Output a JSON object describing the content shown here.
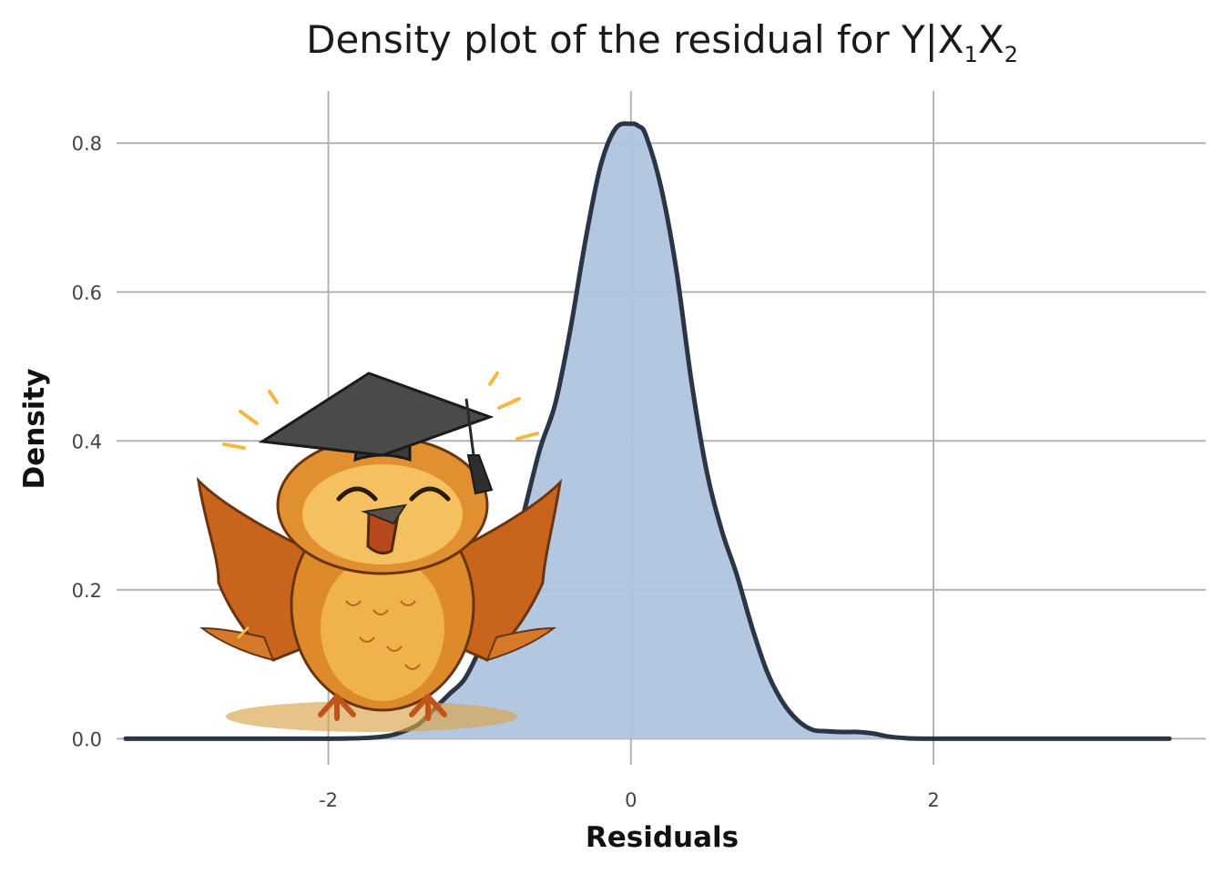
{
  "chart_data": {
    "type": "area",
    "title": {
      "main": "Density plot of the residual for  Y|X",
      "sub1": "1",
      "mid": "X",
      "sub2": "2"
    },
    "xlabel": "Residuals",
    "ylabel": "Density",
    "xlim": [
      -3.4,
      3.8
    ],
    "ylim": [
      -0.035,
      0.87
    ],
    "x_ticks": [
      {
        "value": -2,
        "label": "-2"
      },
      {
        "value": 0,
        "label": "0"
      },
      {
        "value": 2,
        "label": "2"
      }
    ],
    "y_ticks": [
      {
        "value": 0.0,
        "label": "0.0"
      },
      {
        "value": 0.2,
        "label": "0.2"
      },
      {
        "value": 0.4,
        "label": "0.4"
      },
      {
        "value": 0.6,
        "label": "0.6"
      },
      {
        "value": 0.8,
        "label": "0.8"
      }
    ],
    "grid": true,
    "legend": "none",
    "series": [
      {
        "x": [
          -3.34,
          -2.5,
          -2.0,
          -1.75,
          -1.6,
          -1.5,
          -1.4,
          -1.3,
          -1.2,
          -1.1,
          -1.0,
          -0.9,
          -0.8,
          -0.7,
          -0.6,
          -0.5,
          -0.4,
          -0.3,
          -0.2,
          -0.1,
          0.0,
          0.05,
          0.1,
          0.2,
          0.3,
          0.4,
          0.5,
          0.6,
          0.7,
          0.8,
          0.9,
          1.0,
          1.1,
          1.2,
          1.3,
          1.4,
          1.5,
          1.6,
          1.7,
          1.8,
          2.0,
          3.0,
          3.56
        ],
        "y": [
          0.0,
          0.0,
          0.0,
          0.001,
          0.004,
          0.01,
          0.02,
          0.04,
          0.06,
          0.08,
          0.12,
          0.17,
          0.23,
          0.31,
          0.39,
          0.45,
          0.55,
          0.67,
          0.77,
          0.82,
          0.826,
          0.823,
          0.81,
          0.74,
          0.63,
          0.48,
          0.36,
          0.28,
          0.22,
          0.15,
          0.09,
          0.05,
          0.025,
          0.012,
          0.01,
          0.009,
          0.009,
          0.007,
          0.003,
          0.001,
          0.0,
          0.0,
          0.0
        ]
      }
    ],
    "colors": {
      "fill": "#b0c4de",
      "line": "#2b3545",
      "grid": "#b3b3b3"
    }
  },
  "decoration": {
    "mascot": "owl-mascot-graduation-cap"
  }
}
